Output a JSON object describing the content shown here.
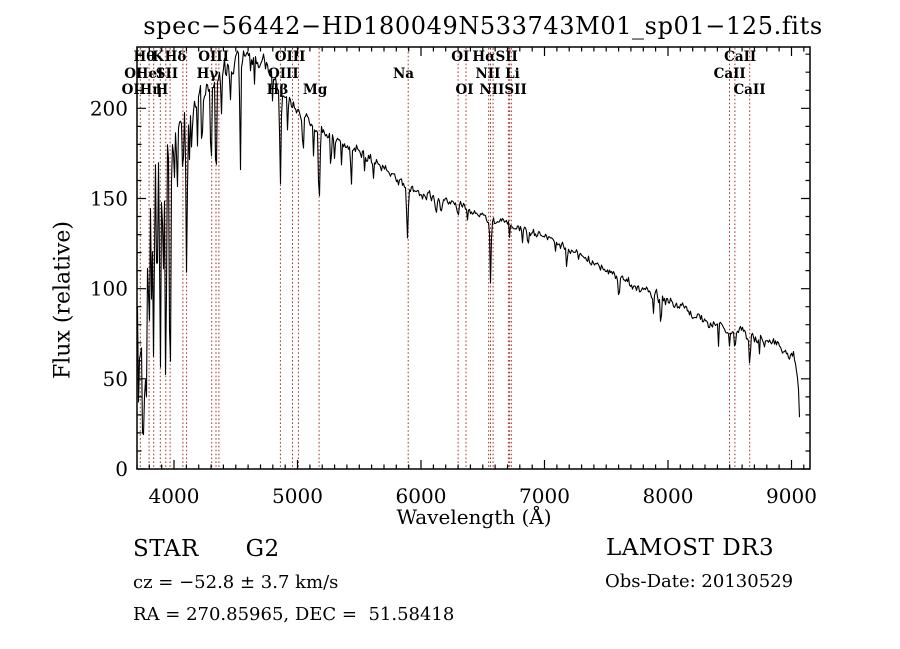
{
  "title": "spec−56442−HD180049N533743M01_sp01−125.fits",
  "annotations": {
    "class_line": "STAR      G2",
    "cz_line": "cz = −52.8 ± 3.7 km/s",
    "radec_line": "RA = 270.85965, DEC =  51.58418",
    "survey": "LAMOST DR3",
    "obs_date": "Obs-Date: 20130529"
  },
  "chart_data": {
    "type": "line",
    "title": "spec−56442−HD180049N533743M01_sp01−125.fits",
    "xlabel": "Wavelength (Å)",
    "ylabel": "Flux (relative)",
    "xlim": [
      3700,
      9150
    ],
    "ylim": [
      0,
      234
    ],
    "x_major_ticks": [
      4000,
      5000,
      6000,
      7000,
      8000,
      9000
    ],
    "x_minor_step": 100,
    "y_major_ticks": [
      0,
      50,
      100,
      150,
      200
    ],
    "y_minor_step": 10,
    "grid": false,
    "line_color": "#000000",
    "marker_line_color": "#a33228",
    "marker_wavelengths": [
      3727,
      3798,
      3835,
      3889,
      3933,
      3968,
      4072,
      4102,
      4305,
      4340,
      4363,
      4861,
      4959,
      5007,
      5175,
      5896,
      6300,
      6364,
      6548,
      6563,
      6584,
      6708,
      6717,
      6731,
      8498,
      8542,
      8662
    ],
    "spectral_labels": [
      {
        "text": "Hθ",
        "row": 1,
        "wl": 3760
      },
      {
        "text": "K",
        "row": 1,
        "wl": 3870
      },
      {
        "text": "Hδ",
        "row": 1,
        "wl": 4012
      },
      {
        "text": "OIII",
        "row": 1,
        "wl": 4320
      },
      {
        "text": "OIII",
        "row": 1,
        "wl": 4940
      },
      {
        "text": "OI",
        "row": 1,
        "wl": 6318
      },
      {
        "text": "HαSII",
        "row": 1,
        "wl": 6600
      },
      {
        "text": "CaII",
        "row": 1,
        "wl": 8585
      },
      {
        "text": "OI",
        "row": 2,
        "wl": 3670
      },
      {
        "text": "HeI",
        "row": 2,
        "wl": 3802
      },
      {
        "text": "SII",
        "row": 2,
        "wl": 3942
      },
      {
        "text": "Hγ",
        "row": 2,
        "wl": 4270
      },
      {
        "text": "OIII",
        "row": 2,
        "wl": 4885
      },
      {
        "text": "Na",
        "row": 2,
        "wl": 5858
      },
      {
        "text": "NII Li",
        "row": 2,
        "wl": 6620
      },
      {
        "text": "CaII",
        "row": 2,
        "wl": 8500
      },
      {
        "text": "OII",
        "row": 3,
        "wl": 3674
      },
      {
        "text": "Hη",
        "row": 3,
        "wl": 3812
      },
      {
        "text": "H",
        "row": 3,
        "wl": 3902
      },
      {
        "text": "Hβ",
        "row": 3,
        "wl": 4838
      },
      {
        "text": "Mg",
        "row": 3,
        "wl": 5142
      },
      {
        "text": "OI",
        "row": 3,
        "wl": 6352
      },
      {
        "text": "NIISII",
        "row": 3,
        "wl": 6665
      },
      {
        "text": "CaII",
        "row": 3,
        "wl": 8660
      }
    ],
    "envelope": [
      [
        3705,
        105
      ],
      [
        3730,
        122
      ],
      [
        3760,
        132
      ],
      [
        3800,
        146
      ],
      [
        3850,
        156
      ],
      [
        3900,
        166
      ],
      [
        3950,
        172
      ],
      [
        4000,
        184
      ],
      [
        4060,
        191
      ],
      [
        4130,
        199
      ],
      [
        4200,
        204
      ],
      [
        4300,
        211
      ],
      [
        4400,
        219
      ],
      [
        4500,
        226
      ],
      [
        4600,
        230
      ],
      [
        4700,
        228
      ],
      [
        4780,
        221
      ],
      [
        4830,
        214
      ],
      [
        4900,
        206
      ],
      [
        5000,
        198
      ],
      [
        5100,
        192
      ],
      [
        5200,
        187
      ],
      [
        5300,
        183
      ],
      [
        5450,
        178
      ],
      [
        5600,
        171
      ],
      [
        5750,
        164
      ],
      [
        5900,
        157
      ],
      [
        6000,
        153
      ],
      [
        6150,
        149
      ],
      [
        6300,
        146
      ],
      [
        6450,
        142
      ],
      [
        6563,
        139
      ],
      [
        6700,
        136
      ],
      [
        6900,
        131
      ],
      [
        7100,
        125
      ],
      [
        7300,
        118
      ],
      [
        7500,
        111
      ],
      [
        7700,
        103
      ],
      [
        7900,
        96
      ],
      [
        8100,
        89
      ],
      [
        8300,
        83
      ],
      [
        8500,
        77
      ],
      [
        8700,
        73
      ],
      [
        8850,
        69
      ],
      [
        8950,
        66
      ],
      [
        9020,
        62
      ],
      [
        9045,
        54
      ],
      [
        9058,
        46
      ],
      [
        9066,
        24
      ],
      [
        9072,
        4
      ]
    ],
    "noise_profile": [
      [
        3705,
        58
      ],
      [
        3760,
        48
      ],
      [
        3850,
        32
      ],
      [
        3950,
        26
      ],
      [
        4000,
        16
      ],
      [
        4100,
        13
      ],
      [
        4250,
        11
      ],
      [
        4400,
        10
      ],
      [
        4700,
        8
      ],
      [
        5000,
        7
      ],
      [
        5300,
        6
      ],
      [
        5600,
        5
      ],
      [
        6000,
        4.5
      ],
      [
        6500,
        4
      ],
      [
        7000,
        4
      ],
      [
        7500,
        4.5
      ],
      [
        8000,
        5
      ],
      [
        8600,
        5
      ],
      [
        9072,
        5
      ]
    ],
    "absorption_features": [
      [
        3710,
        5,
        7
      ],
      [
        3718,
        40,
        8
      ],
      [
        3727,
        55,
        10
      ],
      [
        3733,
        12,
        7
      ],
      [
        3745,
        15,
        10
      ],
      [
        3752,
        8,
        7
      ],
      [
        3770,
        38,
        10
      ],
      [
        3776,
        25,
        7
      ],
      [
        3798,
        52,
        10
      ],
      [
        3820,
        72,
        9
      ],
      [
        3835,
        48,
        10
      ],
      [
        3862,
        78,
        9
      ],
      [
        3889,
        42,
        11
      ],
      [
        3912,
        88,
        9
      ],
      [
        3933,
        26,
        12
      ],
      [
        3968,
        20,
        13
      ],
      [
        4026,
        148,
        9
      ],
      [
        4072,
        152,
        9
      ],
      [
        4102,
        100,
        12
      ],
      [
        4144,
        168,
        8
      ],
      [
        4226,
        168,
        9
      ],
      [
        4300,
        155,
        10
      ],
      [
        4340,
        148,
        12
      ],
      [
        4383,
        193,
        8
      ],
      [
        4455,
        198,
        8
      ],
      [
        4537,
        158,
        10
      ],
      [
        4861,
        153,
        12
      ],
      [
        4920,
        185,
        8
      ],
      [
        5045,
        168,
        9
      ],
      [
        5175,
        142,
        14
      ],
      [
        5270,
        162,
        9
      ],
      [
        5435,
        152,
        9
      ],
      [
        5890,
        127,
        14
      ],
      [
        6122,
        138,
        9
      ],
      [
        6162,
        138,
        8
      ],
      [
        6300,
        137,
        8
      ],
      [
        6563,
        102,
        11
      ],
      [
        6717,
        128,
        8
      ],
      [
        6867,
        122,
        10
      ],
      [
        7180,
        110,
        10
      ],
      [
        7600,
        96,
        12
      ],
      [
        8200,
        83,
        10
      ],
      [
        8327,
        78,
        9
      ],
      [
        8498,
        68,
        10
      ],
      [
        8542,
        65,
        12
      ],
      [
        8662,
        56,
        12
      ]
    ],
    "seed": 3,
    "legend": null,
    "legend_position": null
  }
}
